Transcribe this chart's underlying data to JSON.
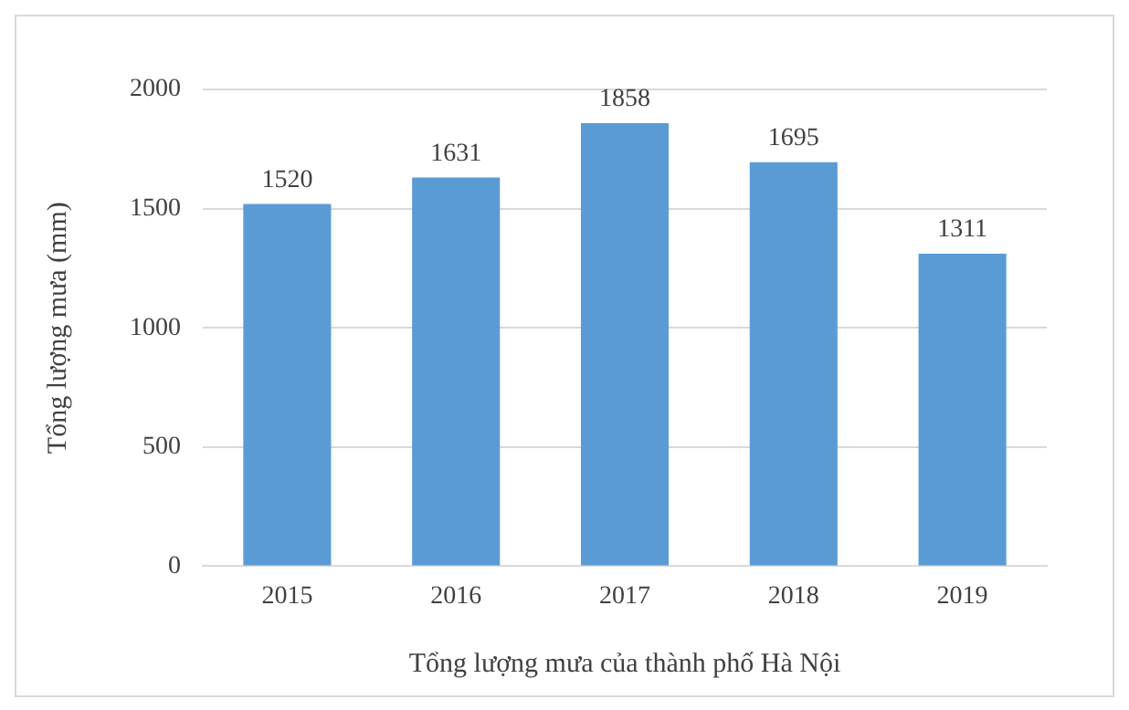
{
  "chart_data": {
    "type": "bar",
    "xlabel": "Tổng lượng mưa của thành phố Hà Nội",
    "ylabel": "Tổng lượng mưa (mm)",
    "categories": [
      "2015",
      "2016",
      "2017",
      "2018",
      "2019"
    ],
    "values": [
      1520,
      1631,
      1858,
      1695,
      1311
    ],
    "color": "#5b9bd5",
    "ylim": [
      0,
      2000
    ],
    "yticks": [
      0,
      500,
      1000,
      1500,
      2000
    ],
    "grid": "y",
    "data_labels": true
  }
}
